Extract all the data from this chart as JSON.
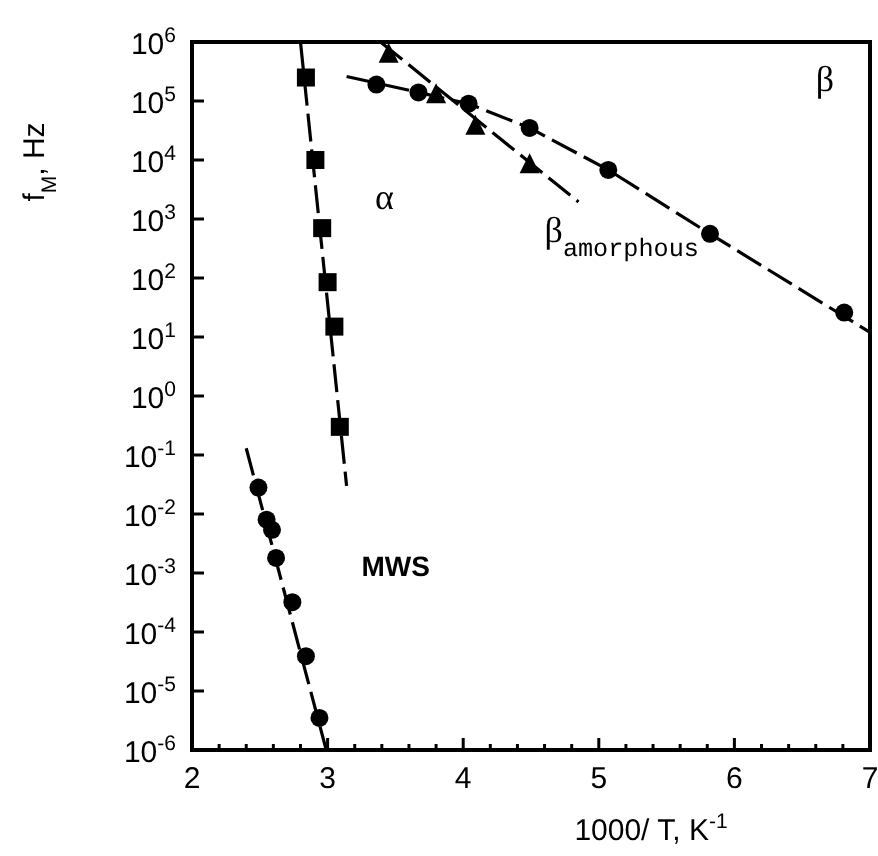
{
  "chart_data": {
    "type": "scatter",
    "xlabel": "1000/ T, K$^{-1}$",
    "ylabel": "f$_{M}$, Hz",
    "log": "y",
    "xlim": [
      2,
      7
    ],
    "ylim": [
      1e-06,
      1000000.0
    ],
    "xticks": [
      2,
      {
        "value": 2.2,
        "label": null
      },
      {
        "value": 2.4,
        "label": null
      },
      {
        "value": 2.6,
        "label": null
      },
      {
        "value": 2.8,
        "label": null
      },
      3,
      {
        "value": 3.2,
        "label": null
      },
      {
        "value": 3.4,
        "label": null
      },
      {
        "value": 3.6,
        "label": null
      },
      {
        "value": 3.8,
        "label": null
      },
      4,
      {
        "value": 4.2,
        "label": null
      },
      {
        "value": 4.4,
        "label": null
      },
      {
        "value": 4.6,
        "label": null
      },
      {
        "value": 4.8,
        "label": null
      },
      5,
      {
        "value": 5.2,
        "label": null
      },
      {
        "value": 5.4,
        "label": null
      },
      {
        "value": 5.6,
        "label": null
      },
      {
        "value": 5.8,
        "label": null
      },
      6,
      {
        "value": 6.2,
        "label": null
      },
      {
        "value": 6.4,
        "label": null
      },
      {
        "value": 6.6,
        "label": null
      },
      {
        "value": 6.8,
        "label": null
      },
      7
    ],
    "yticks": [
      {
        "value": 1e-06,
        "label": "10$^{-6}$"
      },
      {
        "value": 1e-05,
        "label": "10$^{-5}$"
      },
      {
        "value": 0.0001,
        "label": "10$^{-4}$"
      },
      {
        "value": 0.001,
        "label": "10$^{-3}$"
      },
      {
        "value": 0.01,
        "label": "10$^{-2}$"
      },
      {
        "value": 0.1,
        "label": "10$^{-1}$"
      },
      {
        "value": 1,
        "label": "10$^{0}$"
      },
      {
        "value": 10,
        "label": "10$^{1}$"
      },
      {
        "value": 100,
        "label": "10$^{2}$"
      },
      {
        "value": 1000,
        "label": "10$^{3}$"
      },
      {
        "value": 10000.0,
        "label": "10$^{4}$"
      },
      {
        "value": 100000.0,
        "label": "10$^{5}$"
      },
      {
        "value": 1000000.0,
        "label": "10$^{6}$"
      }
    ],
    "grid": false,
    "series": [
      {
        "marker": "square",
        "color": "#000000",
        "x": [
          2.84,
          2.91,
          2.96,
          3.0,
          3.05,
          3.09
        ],
        "values": [
          250000,
          10000,
          700,
          85,
          15,
          0.3
        ]
      },
      {
        "type": "line",
        "line_style": "dashed",
        "color": "#000000",
        "x": [
          2.8,
          3.14
        ],
        "values": [
          1000000,
          0.03
        ]
      },
      {
        "marker": "circle",
        "color": "#000000",
        "x": [
          2.49,
          2.55,
          2.59,
          2.62,
          2.74,
          2.84,
          2.94
        ],
        "values": [
          0.028,
          0.008,
          0.0054,
          0.0018,
          0.00032,
          3.9e-05,
          3.5e-06
        ]
      },
      {
        "type": "line",
        "line_style": "dashed",
        "color": "#000000",
        "x": [
          2.4,
          2.99
        ],
        "values": [
          0.13,
          1e-06
        ]
      },
      {
        "marker": "circle",
        "color": "#000000",
        "x": [
          3.36,
          3.67,
          4.04,
          4.49,
          5.07,
          5.82,
          6.81
        ],
        "values": [
          190000,
          140000,
          90000,
          35000,
          6800,
          560,
          26
        ]
      },
      {
        "type": "line",
        "line_style": "dashed",
        "color": "#000000",
        "x": [
          3.14,
          3.67,
          4.04,
          4.49,
          5.07,
          5.82,
          7.0
        ],
        "values": [
          260000,
          140000,
          90000,
          35000,
          6800,
          560,
          12
        ]
      },
      {
        "marker": "triangle",
        "color": "#000000",
        "x": [
          3.45,
          3.8,
          4.09,
          4.49
        ],
        "values": [
          630000,
          130000,
          38000,
          8500
        ]
      },
      {
        "type": "line",
        "line_style": "dashed",
        "color": "#000000",
        "x": [
          3.39,
          4.85
        ],
        "values": [
          1000000,
          1950
        ]
      }
    ],
    "annotations": [
      "α",
      "β",
      "β$_{amorphous}$",
      "MWS"
    ]
  }
}
